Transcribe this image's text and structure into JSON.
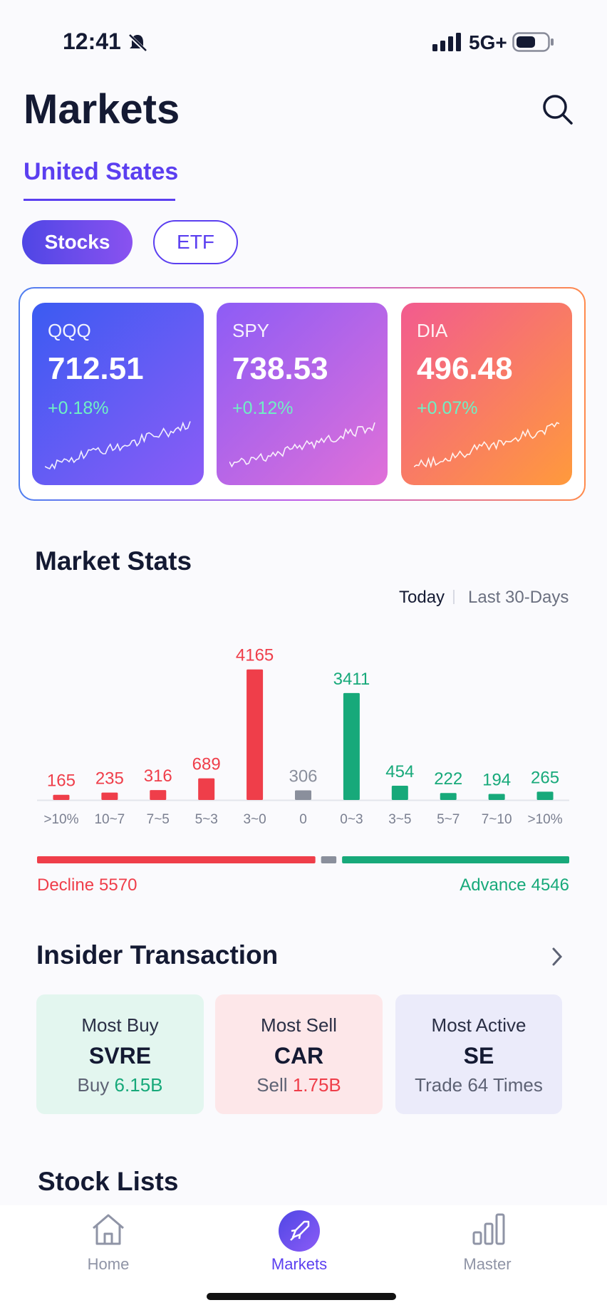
{
  "status_bar": {
    "time": "12:41",
    "network": "5G+"
  },
  "header": {
    "title": "Markets"
  },
  "region_tab": "United States",
  "asset_tabs": [
    "Stocks",
    "ETF"
  ],
  "indices": [
    {
      "symbol": "QQQ",
      "price": "712.51",
      "change": "+0.18%"
    },
    {
      "symbol": "SPY",
      "price": "738.53",
      "change": "+0.12%"
    },
    {
      "symbol": "DIA",
      "price": "496.48",
      "change": "+0.07%"
    }
  ],
  "market_stats": {
    "title": "Market Stats",
    "periods": [
      "Today",
      "Last 30-Days"
    ],
    "chart_data": {
      "type": "bar",
      "categories": [
        ">10%",
        "10~7",
        "7~5",
        "5~3",
        "3~0",
        "0",
        "0~3",
        "3~5",
        "5~7",
        "7~10",
        ">10%"
      ],
      "values": [
        165,
        235,
        316,
        689,
        4165,
        306,
        3411,
        454,
        222,
        194,
        265
      ],
      "colors": [
        "#ef3e4a",
        "#ef3e4a",
        "#ef3e4a",
        "#ef3e4a",
        "#ef3e4a",
        "#8a8f9c",
        "#17a97a",
        "#17a97a",
        "#17a97a",
        "#17a97a",
        "#17a97a"
      ]
    },
    "breadth": {
      "decline": {
        "label": "Decline",
        "value": 5570,
        "color": "#ef3e4a"
      },
      "advance": {
        "label": "Advance",
        "value": 4546,
        "color": "#17a97a"
      }
    }
  },
  "insider": {
    "title": "Insider Transaction",
    "cards": [
      {
        "heading": "Most Buy",
        "symbol": "SVRE",
        "label": "Buy",
        "amount": "6.15B"
      },
      {
        "heading": "Most Sell",
        "symbol": "CAR",
        "label": "Sell",
        "amount": "1.75B"
      },
      {
        "heading": "Most Active",
        "symbol": "SE",
        "label": "Trade 64 Times"
      }
    ]
  },
  "stock_lists": {
    "title": "Stock Lists"
  },
  "nav": [
    "Home",
    "Markets",
    "Master"
  ]
}
